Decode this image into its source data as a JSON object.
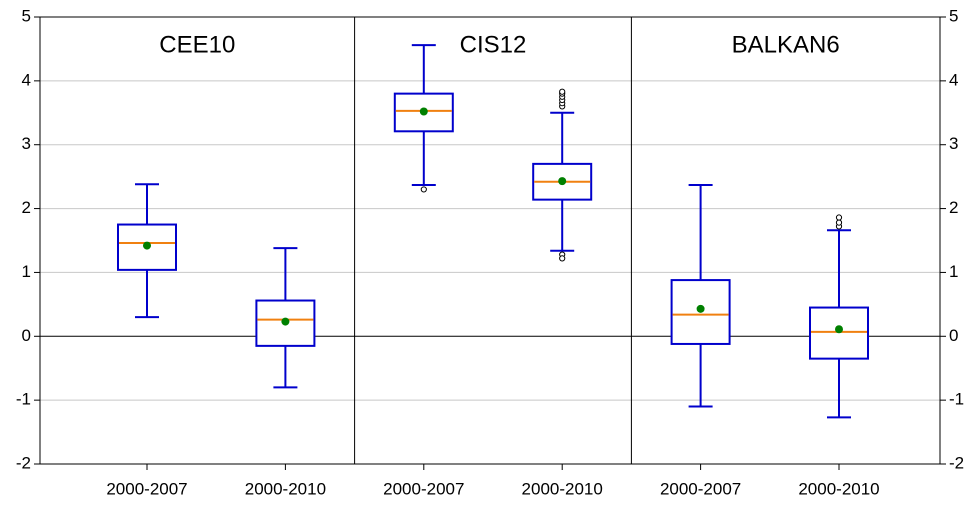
{
  "chart_data": {
    "type": "box",
    "categories": [
      "2000-2007",
      "2000-2010",
      "2000-2007",
      "2000-2010",
      "2000-2007",
      "2000-2010"
    ],
    "groups": [
      "CEE10",
      "CIS12",
      "BALKAN6"
    ],
    "boxes": [
      {
        "low": 0.3,
        "q1": 1.04,
        "median": 1.46,
        "q3": 1.75,
        "high": 2.38,
        "mean": 1.42,
        "outliers": []
      },
      {
        "low": -0.8,
        "q1": -0.15,
        "median": 0.26,
        "q3": 0.56,
        "high": 1.38,
        "mean": 0.23,
        "outliers": []
      },
      {
        "low": 2.37,
        "q1": 3.21,
        "median": 3.53,
        "q3": 3.8,
        "high": 4.56,
        "mean": 3.52,
        "outliers": [
          2.3
        ]
      },
      {
        "low": 1.34,
        "q1": 2.14,
        "median": 2.42,
        "q3": 2.7,
        "high": 3.5,
        "mean": 2.43,
        "outliers": [
          3.6,
          3.65,
          3.7,
          3.75,
          3.8,
          3.83,
          1.28,
          1.22
        ]
      },
      {
        "low": -1.1,
        "q1": -0.12,
        "median": 0.34,
        "q3": 0.88,
        "high": 2.37,
        "mean": 0.43,
        "outliers": []
      },
      {
        "low": -1.27,
        "q1": -0.35,
        "median": 0.07,
        "q3": 0.45,
        "high": 1.66,
        "mean": 0.11,
        "outliers": [
          1.72,
          1.78,
          1.86
        ]
      }
    ],
    "box_color": "#0000cc",
    "median_color": "#f08010",
    "mean_color": "#008000",
    "ylim": [
      -2,
      5
    ],
    "yticks": [
      -2,
      -1,
      0,
      1,
      2,
      3,
      4,
      5
    ],
    "grid": true
  }
}
